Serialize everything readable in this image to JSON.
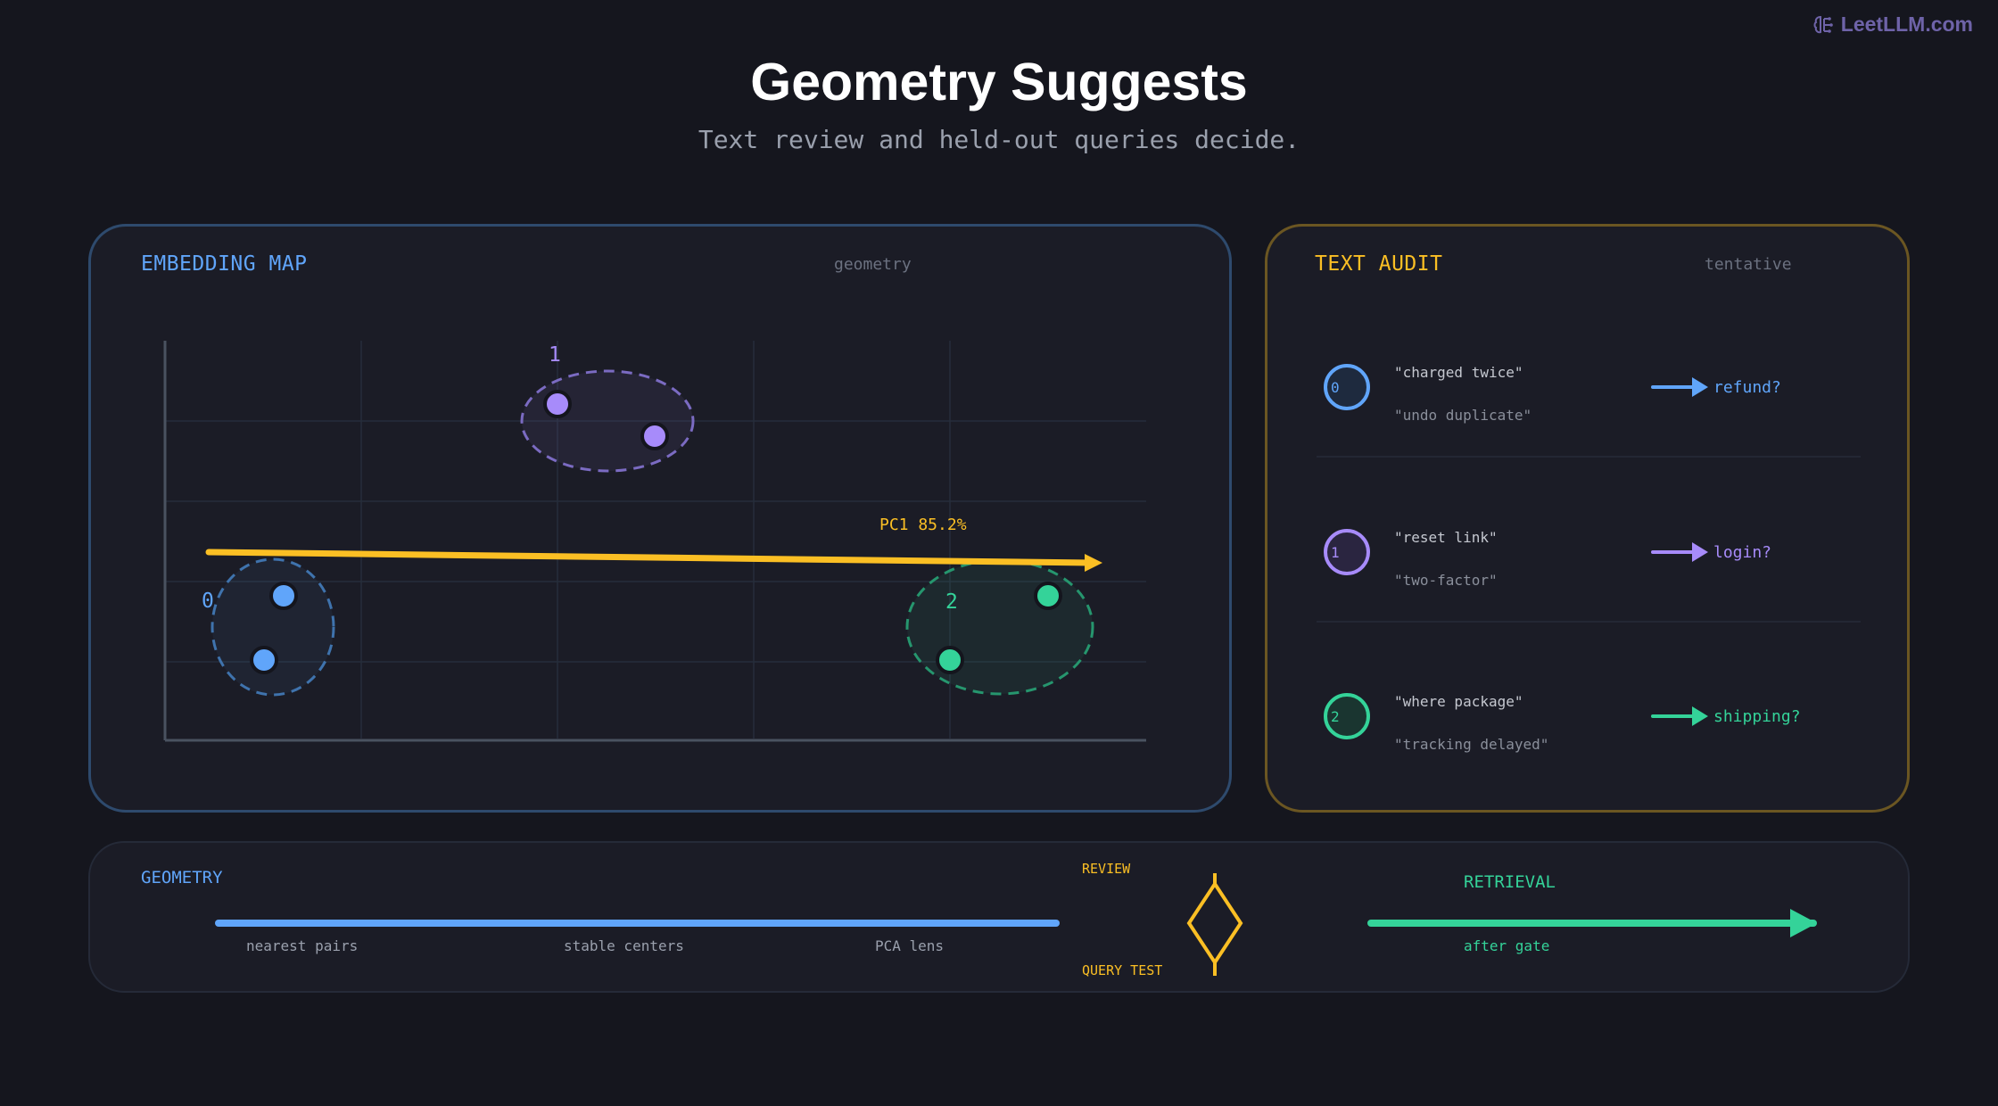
{
  "brand": {
    "text": "LeetLLM.com",
    "icon": "brain-icon"
  },
  "title": "Geometry Suggests",
  "subtitle": "Text review and held-out queries decide.",
  "map": {
    "heading": "EMBEDDING MAP",
    "tag": "geometry",
    "axis_label": "PC1 85.2%",
    "clusters": [
      {
        "label": "0",
        "color": "#60a5fa"
      },
      {
        "label": "1",
        "color": "#a78bfa"
      },
      {
        "label": "2",
        "color": "#34d399"
      }
    ]
  },
  "audit": {
    "heading": "TEXT AUDIT",
    "tag": "tentative",
    "rows": [
      {
        "id": "0",
        "line1": "\"charged twice\"",
        "line2": "\"undo duplicate\"",
        "guess": "refund?",
        "color": "#60a5fa"
      },
      {
        "id": "1",
        "line1": "\"reset link\"",
        "line2": "\"two-factor\"",
        "guess": "login?",
        "color": "#a78bfa"
      },
      {
        "id": "2",
        "line1": "\"where package\"",
        "line2": "\"tracking delayed\"",
        "guess": "shipping?",
        "color": "#34d399"
      }
    ]
  },
  "flow": {
    "geometry_label": "GEOMETRY",
    "steps": [
      "nearest pairs",
      "stable centers",
      "PCA lens"
    ],
    "gate_top": "REVIEW",
    "gate_bottom": "QUERY TEST",
    "retrieval_label": "RETRIEVAL",
    "retrieval_note": "after gate"
  },
  "colors": {
    "blue": "#60a5fa",
    "purple": "#a78bfa",
    "green": "#34d399",
    "yellow": "#fbbf24"
  }
}
